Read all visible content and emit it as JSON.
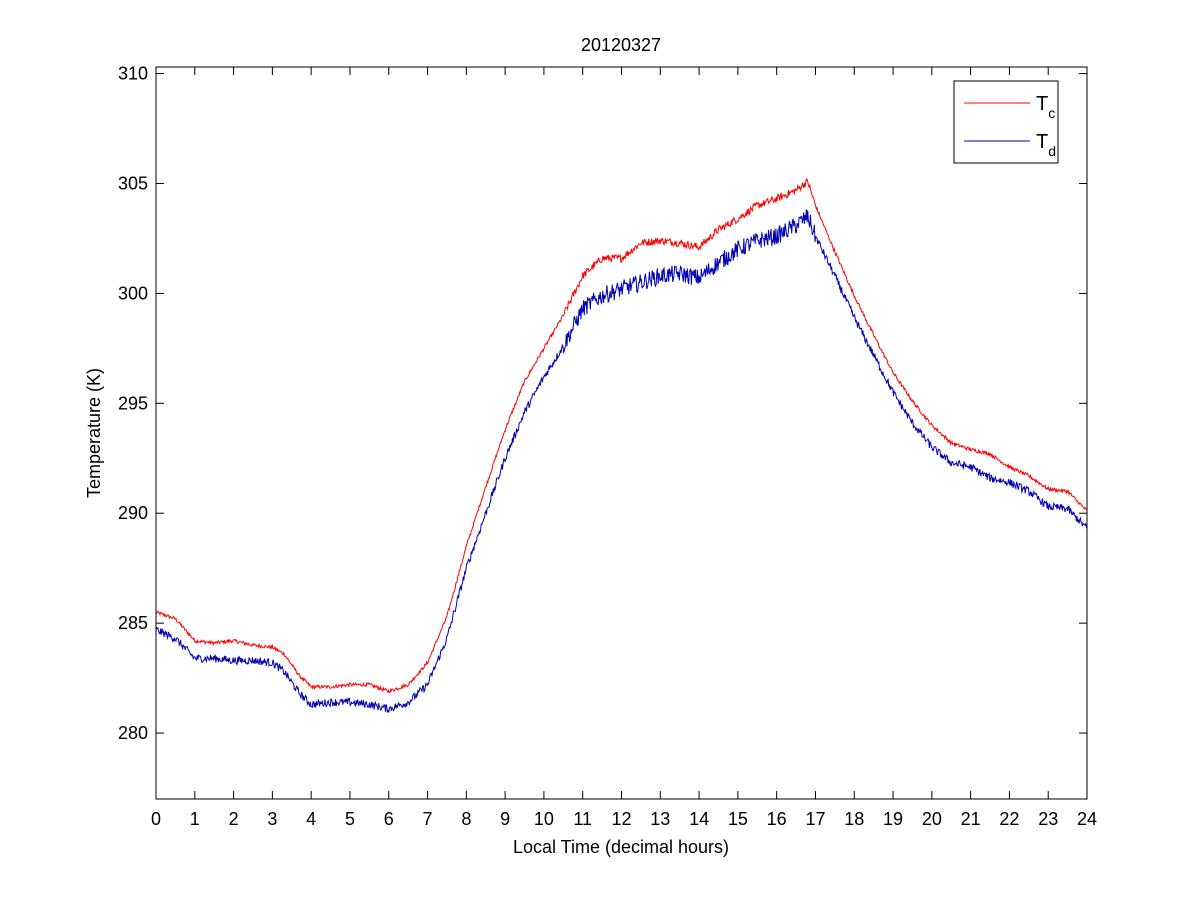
{
  "chart_data": {
    "type": "line",
    "title": "20120327",
    "xlabel": "Local Time (decimal hours)",
    "ylabel": "Temperature (K)",
    "xlim": [
      0,
      24
    ],
    "ylim": [
      277,
      310.3
    ],
    "xticks": [
      0,
      1,
      2,
      3,
      4,
      5,
      6,
      7,
      8,
      9,
      10,
      11,
      12,
      13,
      14,
      15,
      16,
      17,
      18,
      19,
      20,
      21,
      22,
      23,
      24
    ],
    "yticks": [
      280,
      285,
      290,
      295,
      300,
      305,
      310
    ],
    "grid": false,
    "legend_position": "top-right",
    "series": [
      {
        "name": "T_c",
        "legend_main": "T",
        "legend_sub": "c",
        "color": "#ff0000",
        "noise": 0.08,
        "x": [
          0,
          0.5,
          1,
          1.5,
          2,
          2.5,
          3,
          3.3,
          3.7,
          4,
          4.5,
          5,
          5.5,
          6,
          6.5,
          7,
          7.5,
          8,
          8.5,
          9,
          9.5,
          10,
          10.5,
          11,
          11.5,
          12,
          12.5,
          13,
          13.5,
          14,
          14.5,
          15,
          15.5,
          16,
          16.5,
          16.8,
          17,
          17.5,
          18,
          18.5,
          19,
          19.5,
          20,
          20.5,
          21,
          21.5,
          22,
          22.5,
          23,
          23.5,
          24
        ],
        "y": [
          285.5,
          285.2,
          284.2,
          284.1,
          284.2,
          284.0,
          283.9,
          283.6,
          282.6,
          282.1,
          282.1,
          282.2,
          282.2,
          281.9,
          282.2,
          283.2,
          285.3,
          288.5,
          291.2,
          293.8,
          296.0,
          297.5,
          299.0,
          300.8,
          301.6,
          301.6,
          302.3,
          302.4,
          302.3,
          302.1,
          302.9,
          303.4,
          304.0,
          304.3,
          304.7,
          305.1,
          304.0,
          301.9,
          299.9,
          298.1,
          296.4,
          295.1,
          294.0,
          293.2,
          292.9,
          292.7,
          292.1,
          291.7,
          291.1,
          291.0,
          290.1
        ]
      },
      {
        "name": "T_d",
        "legend_main": "T",
        "legend_sub": "d",
        "color": "#0000b4",
        "noise": 0.18,
        "x": [
          0,
          0.5,
          1,
          1.5,
          2,
          2.5,
          3,
          3.3,
          3.7,
          4,
          4.5,
          5,
          5.5,
          6,
          6.5,
          7,
          7.5,
          8,
          8.5,
          9,
          9.5,
          10,
          10.5,
          11,
          11.5,
          12,
          12.5,
          13,
          13.5,
          14,
          14.5,
          15,
          15.5,
          16,
          16.5,
          16.8,
          17,
          17.5,
          18,
          18.5,
          19,
          19.5,
          20,
          20.5,
          21,
          21.5,
          22,
          22.5,
          23,
          23.5,
          24
        ],
        "y": [
          284.7,
          284.3,
          283.4,
          283.4,
          283.3,
          283.3,
          283.2,
          282.8,
          281.8,
          281.3,
          281.4,
          281.4,
          281.3,
          281.1,
          281.4,
          282.2,
          284.3,
          287.5,
          290.0,
          292.5,
          294.6,
          296.2,
          297.6,
          299.3,
          299.9,
          300.2,
          300.5,
          300.8,
          300.9,
          300.7,
          301.4,
          302.0,
          302.4,
          302.6,
          303.1,
          303.5,
          302.6,
          300.8,
          298.9,
          297.2,
          295.5,
          294.1,
          293.0,
          292.3,
          292.1,
          291.6,
          291.4,
          291.0,
          290.3,
          290.2,
          289.3
        ]
      }
    ]
  }
}
